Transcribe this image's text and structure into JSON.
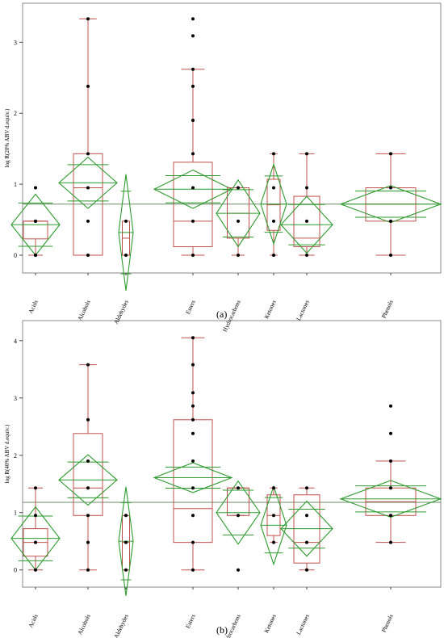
{
  "chart_data": [
    {
      "type": "box",
      "panel_label": "(a)",
      "ylabel": "log R(20% ABV d.equiv.)",
      "categories": [
        "Acids",
        "Alcohols",
        "Aldehydes",
        "Esters",
        "Hydrocarbons",
        "Ketones",
        "Lactones",
        "Phenols"
      ],
      "ylim": [
        -0.25,
        3.55
      ],
      "yticks": [
        0,
        1,
        2,
        3
      ],
      "grand_mean": 0.72,
      "groups": [
        {
          "name": "Acids",
          "points": [
            0,
            0,
            0.48,
            0.48,
            0.95
          ],
          "box": {
            "q1": 0.23,
            "median": 0.48,
            "q3": 0.48,
            "whisker_low": 0,
            "whisker_high": 0.48
          },
          "mean": 0.43,
          "ci": [
            0.0,
            0.86
          ]
        },
        {
          "name": "Alcohols",
          "points": [
            0,
            0.48,
            0.95,
            1.43,
            2.38,
            3.33
          ],
          "box": {
            "q1": 0,
            "median": 0.95,
            "q3": 1.43,
            "whisker_low": 0,
            "whisker_high": 3.33
          },
          "mean": 1.02,
          "ci": [
            0.66,
            1.38
          ]
        },
        {
          "name": "Aldehydes",
          "points": [
            0,
            0.48
          ],
          "box": {
            "q1": 0,
            "median": 0.24,
            "q3": 0.48,
            "whisker_low": 0,
            "whisker_high": 0.48
          },
          "mean": 0.32,
          "ci": [
            -0.5,
            1.14
          ]
        },
        {
          "name": "Esters",
          "points": [
            0,
            0.48,
            0.95,
            1.43,
            1.9,
            2.38,
            2.62,
            3.09,
            3.33
          ],
          "box": {
            "q1": 0.12,
            "median": 0.48,
            "q3": 1.31,
            "whisker_low": 0,
            "whisker_high": 2.62
          },
          "mean": 0.93,
          "ci": [
            0.66,
            1.2
          ]
        },
        {
          "name": "Hydrocarbons",
          "points": [
            0,
            0.48,
            0.95
          ],
          "box": {
            "q1": 0.24,
            "median": 0.59,
            "q3": 0.95,
            "whisker_low": 0,
            "whisker_high": 0.95
          },
          "mean": 0.59,
          "ci": [
            0.12,
            1.06
          ]
        },
        {
          "name": "Ketones",
          "points": [
            0,
            0.48,
            0.95,
            1.43
          ],
          "box": {
            "q1": 0.35,
            "median": 0.71,
            "q3": 1.07,
            "whisker_low": 0,
            "whisker_high": 1.43
          },
          "mean": 0.72,
          "ci": [
            0.16,
            1.28
          ]
        },
        {
          "name": "Lactones",
          "points": [
            0,
            0.48,
            0.95,
            1.43
          ],
          "box": {
            "q1": 0.12,
            "median": 0.24,
            "q3": 0.83,
            "whisker_low": 0,
            "whisker_high": 1.43
          },
          "mean": 0.43,
          "ci": [
            0.03,
            0.83
          ]
        },
        {
          "name": "Phenols",
          "points": [
            0,
            0.48,
            0.95,
            1.43
          ],
          "box": {
            "q1": 0.48,
            "median": 0.72,
            "q3": 0.95,
            "whisker_low": 0,
            "whisker_high": 1.43
          },
          "mean": 0.72,
          "ci": [
            0.46,
            0.98
          ]
        }
      ]
    },
    {
      "type": "box",
      "panel_label": "(b)",
      "ylabel": "log R(40% ABV d.equiv.)",
      "categories": [
        "Acids",
        "Alcohols",
        "Aldehydes",
        "Esters",
        "Hydrocarbons",
        "Ketones",
        "Lactones",
        "Phenols"
      ],
      "ylim": [
        -0.3,
        4.35
      ],
      "yticks": [
        0,
        1,
        2,
        3,
        4
      ],
      "grand_mean": 1.18,
      "groups": [
        {
          "name": "Acids",
          "points": [
            0,
            0.48,
            0.95,
            1.43
          ],
          "box": {
            "q1": 0.24,
            "median": 0.48,
            "q3": 0.72,
            "whisker_low": 0,
            "whisker_high": 1.43
          },
          "mean": 0.55,
          "ci": [
            0.0,
            1.1
          ]
        },
        {
          "name": "Alcohols",
          "points": [
            0,
            0.48,
            0.95,
            1.43,
            1.9,
            2.62,
            3.58
          ],
          "box": {
            "q1": 0.95,
            "median": 1.43,
            "q3": 2.38,
            "whisker_low": 0,
            "whisker_high": 3.58
          },
          "mean": 1.57,
          "ci": [
            1.13,
            2.01
          ]
        },
        {
          "name": "Aldehydes",
          "points": [
            0,
            0.48,
            0.95
          ],
          "box": {
            "q1": 0,
            "median": 0.48,
            "q3": 0.95,
            "whisker_low": 0,
            "whisker_high": 0.95
          },
          "mean": 0.5,
          "ci": [
            -0.45,
            1.45
          ]
        },
        {
          "name": "Esters",
          "points": [
            0,
            0.48,
            0.95,
            1.43,
            1.9,
            2.38,
            2.62,
            2.86,
            3.09,
            3.58,
            4.05
          ],
          "box": {
            "q1": 0.48,
            "median": 1.07,
            "q3": 2.62,
            "whisker_low": 0,
            "whisker_high": 4.05
          },
          "mean": 1.61,
          "ci": [
            1.35,
            1.87
          ]
        },
        {
          "name": "Hydrocarbons",
          "points": [
            0,
            0.95,
            1.43
          ],
          "box": {
            "q1": 0.95,
            "median": 1.43,
            "q3": 1.43,
            "whisker_low": 0.95,
            "whisker_high": 1.43
          },
          "mean": 1.0,
          "ci": [
            0.45,
            1.55
          ]
        },
        {
          "name": "Ketones",
          "points": [
            0.48,
            0.95,
            1.43
          ],
          "box": {
            "q1": 0.6,
            "median": 0.95,
            "q3": 1.31,
            "whisker_low": 0.48,
            "whisker_high": 1.43
          },
          "mean": 0.78,
          "ci": [
            0.1,
            1.46
          ]
        },
        {
          "name": "Lactones",
          "points": [
            0,
            0.48,
            0.95,
            1.43
          ],
          "box": {
            "q1": 0.12,
            "median": 0.48,
            "q3": 1.31,
            "whisker_low": 0,
            "whisker_high": 1.43
          },
          "mean": 0.72,
          "ci": [
            0.24,
            1.2
          ]
        },
        {
          "name": "Phenols",
          "points": [
            0.48,
            0.95,
            1.43,
            1.9,
            2.38,
            2.86
          ],
          "box": {
            "q1": 0.95,
            "median": 1.19,
            "q3": 1.43,
            "whisker_low": 0.48,
            "whisker_high": 1.9
          },
          "mean": 1.24,
          "ci": [
            0.92,
            1.56
          ]
        }
      ]
    }
  ]
}
